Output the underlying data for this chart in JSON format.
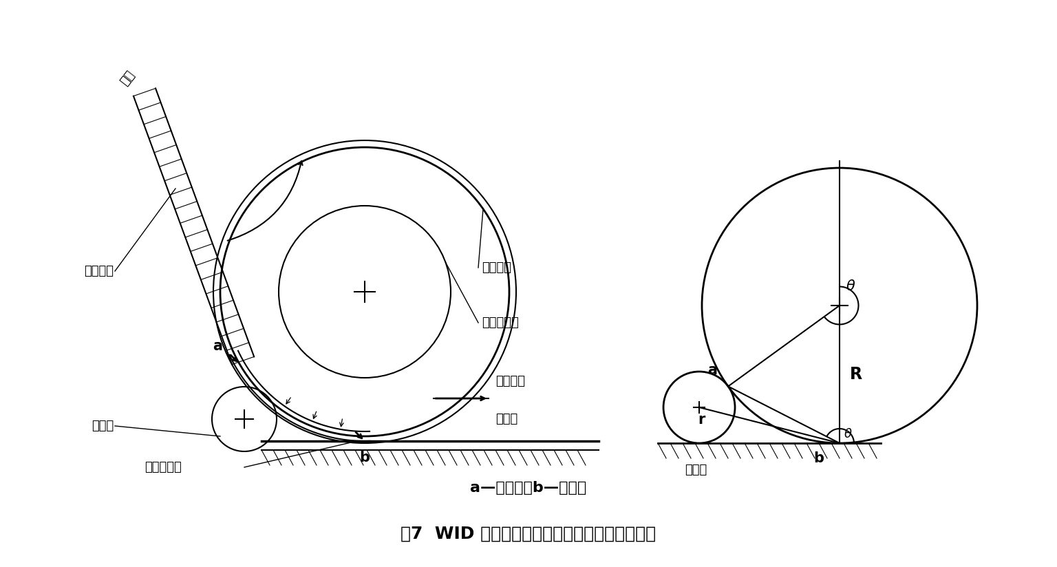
{
  "bg_color": "#ffffff",
  "line_color": "#000000",
  "title_text": "图7  WID 的结构（左）和理想结构示意图（右）",
  "subtitle_text": "a—握持点；b—转移点",
  "label_nian": "凝棉尘笼",
  "label_chou": "抽吸作用区",
  "label_xian": "纤网方向",
  "label_chuan_r": "传动辊",
  "label_chuan_l": "传动辊",
  "label_tou": "透气网帘",
  "label_fu": "负压吸附力",
  "label_dao": "导网"
}
